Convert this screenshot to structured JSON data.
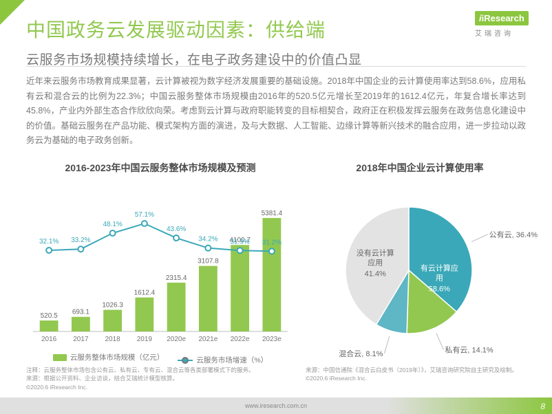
{
  "header": {
    "title": "中国政务云发展驱动因素：供给端",
    "subtitle": "云服务市场规模持续增长，在电子政务建设中的价值凸显",
    "title_color": "#92c84f",
    "subtitle_color": "#7a7a7a"
  },
  "logo": {
    "brand": "iResearch",
    "cn": "艾瑞咨询"
  },
  "body_text": "近年来云服务市场教育成果显著，云计算被视为数字经济发展重要的基础设施。2018年中国企业的云计算使用率达到58.6%，应用私有云和混合云的比例为22.3%；中国云服务整体市场规模由2016年的520.5亿元增长至2019年的1612.4亿元，年复合增长率达到45.8%，产业内外部生态合作欣欣向荣。考虑到云计算与政府职能转变的目标相契合，政府正在积极发挥云服务在政务信息化建设中的价值。基础云服务在产品功能、模式架构方面的演进，及与大数据、人工智能、边缘计算等新兴技术的融合应用，进一步拉动以政务云为基础的电子政务创新。",
  "combo_chart": {
    "title": "2016-2023年中国云服务整体市场规模及预测",
    "categories": [
      "2016",
      "2017",
      "2018",
      "2019",
      "2020e",
      "2021e",
      "2022e",
      "2023e"
    ],
    "bar_values": [
      520.5,
      693.1,
      1026.3,
      1612.4,
      2315.4,
      3107.8,
      4100.7,
      5381.4
    ],
    "bar_color": "#92c84f",
    "bar_ymax": 6000,
    "line_values_pct": [
      32.1,
      33.2,
      48.1,
      57.1,
      43.6,
      34.2,
      31.9,
      31.2
    ],
    "line_ymax": 65,
    "line_color": "#3aa8b8",
    "marker_fill": "#ffffff",
    "axis_color": "#bdbdbd",
    "grid_color": "#e8e8e8",
    "plot_bg": "#ffffff",
    "legend": [
      {
        "type": "square",
        "label": "云服务整体市场规模（亿元）",
        "color": "#92c84f"
      },
      {
        "type": "line",
        "label": "云服务市场增速（%）",
        "color": "#3aa8b8"
      }
    ]
  },
  "pie_chart": {
    "title": "2018年中国企业云计算使用率",
    "slices": [
      {
        "label": "公有云",
        "value": 36.4,
        "color": "#3aa8b8",
        "text_color": "#666"
      },
      {
        "label": "私有云",
        "value": 14.1,
        "color": "#92c84f",
        "text_color": "#666"
      },
      {
        "label": "混合云",
        "value": 8.1,
        "color": "#5fb6c4",
        "text_color": "#666"
      },
      {
        "label_inside": "没有云计算\n应用",
        "value": 41.4,
        "color": "#e3e3e3",
        "text_color": "#666"
      }
    ],
    "center_group": {
      "label": "有云计算应用",
      "value": "58.6%",
      "text_color": "#ffffff",
      "sub_count": 3
    }
  },
  "footnotes": {
    "left_l1": "注释：云服务整体市场包含公有云、私有云、专有云、混合云等各类部署模式下的服务。",
    "left_l2": "来源：根据公开资料、企业访谈，结合艾瑞统计模型核算。",
    "right": "来源：中国信通院《混合云白皮书（2019年）》，艾瑞咨询研究院自主研究及绘制。",
    "copyright": "©2020.6 iResearch Inc.",
    "url": "www.iresearch.com.cn"
  },
  "page_number": "8"
}
